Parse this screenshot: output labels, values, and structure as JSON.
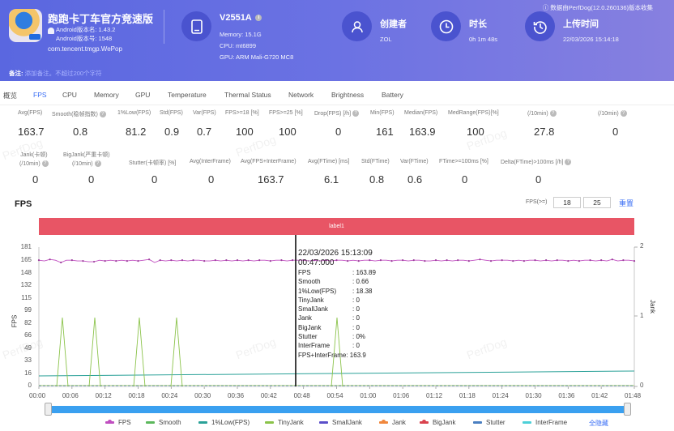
{
  "header": {
    "app": {
      "name": "跑跑卡丁车官方竞速版",
      "version_name": "Android版本名: 1.43.2",
      "version_code": "Android版本号: 1548",
      "package": "com.tencent.tmgp.WePop"
    },
    "device": {
      "model": "V2551A",
      "memory": "Memory: 15.1G",
      "cpu": "CPU: mt6899",
      "gpu": "GPU: ARM Mali-G720 MC8"
    },
    "creator": {
      "title": "创建者",
      "value": "ZOL"
    },
    "duration": {
      "title": "时长",
      "value": "0h 1m 48s"
    },
    "upload_time": {
      "title": "上传时间",
      "value": "22/03/2026 15:14:18"
    },
    "collect_note": "数据由PerfDog(12.0.260136)版本收集",
    "remark_label": "备注:",
    "remark_placeholder": "添加备注。不超过200个字符"
  },
  "tabs": [
    {
      "label": "概览",
      "active": false
    },
    {
      "label": "FPS",
      "active": true
    },
    {
      "label": "CPU",
      "active": false
    },
    {
      "label": "Memory",
      "active": false
    },
    {
      "label": "GPU",
      "active": false
    },
    {
      "label": "Temperature",
      "active": false
    },
    {
      "label": "Thermal Status",
      "active": false
    },
    {
      "label": "Network",
      "active": false
    },
    {
      "label": "Brightness",
      "active": false
    },
    {
      "label": "Battery",
      "active": false
    }
  ],
  "metrics_row1": [
    {
      "label": "Avg(FPS)",
      "value": "163.7",
      "help": false
    },
    {
      "label": "Smooth(稳帧指数)",
      "value": "0.8",
      "help": true
    },
    {
      "label": "1%Low(FPS)",
      "value": "81.2",
      "help": false
    },
    {
      "label": "Std(FPS)",
      "value": "0.9",
      "help": false
    },
    {
      "label": "Var(FPS)",
      "value": "0.7",
      "help": false
    },
    {
      "label": "FPS>=18 [%]",
      "value": "100",
      "help": false
    },
    {
      "label": "FPS>=25 [%]",
      "value": "100",
      "help": false
    },
    {
      "label": "Drop(FPS) [/h]",
      "value": "0",
      "help": true
    },
    {
      "label": "Min(FPS)",
      "value": "161",
      "help": false
    },
    {
      "label": "Median(FPS)",
      "value": "163.9",
      "help": false
    },
    {
      "label": "MedRange(FPS)[%]",
      "value": "100",
      "help": false
    },
    {
      "label": "(/10min)",
      "value": "27.8",
      "help": true
    },
    {
      "label": "(/10min)",
      "value": "0",
      "help": true
    }
  ],
  "metrics_row2": [
    {
      "label": "Jank(卡顿)",
      "label2": "(/10min)",
      "value": "0",
      "help": true
    },
    {
      "label": "BigJank(严重卡顿)",
      "label2": "(/10min)",
      "value": "0",
      "help": true
    },
    {
      "label": "Stutter(卡顿率) [%]",
      "value": "0",
      "help": false
    },
    {
      "label": "Avg(InterFrame)",
      "value": "0",
      "help": false
    },
    {
      "label": "Avg(FPS+InterFrame)",
      "value": "163.7",
      "help": false
    },
    {
      "label": "Avg(FTime) [ms]",
      "value": "6.1",
      "help": false
    },
    {
      "label": "Std(FTime)",
      "value": "0.8",
      "help": false
    },
    {
      "label": "Var(FTime)",
      "value": "0.6",
      "help": false
    },
    {
      "label": "FTime>=100ms [%]",
      "value": "0",
      "help": false
    },
    {
      "label": "Delta(FTime)>100ms [/h]",
      "value": "0",
      "help": true
    }
  ],
  "watermark": "PerfDog",
  "chart_section": {
    "title": "FPS",
    "threshold_label": "FPS(>=)",
    "threshold_1": "18",
    "threshold_2": "25",
    "reset_label": "重置",
    "label_bar": "label1",
    "hide_all_label": "全隐藏"
  },
  "tooltip": {
    "datetime": "22/03/2026 15:13:09",
    "elapsed": "00:47:000",
    "rows": [
      {
        "k": "FPS",
        "v": ": 163.89"
      },
      {
        "k": "Smooth",
        "v": ": 0.66"
      },
      {
        "k": "1%Low(FPS)",
        "v": ": 18.38"
      },
      {
        "k": "TinyJank",
        "v": ": 0"
      },
      {
        "k": "SmallJank",
        "v": ": 0"
      },
      {
        "k": "Jank",
        "v": ": 0"
      },
      {
        "k": "BigJank",
        "v": ": 0"
      },
      {
        "k": "Stutter",
        "v": ": 0%"
      },
      {
        "k": "InterFrame",
        "v": ": 0"
      },
      {
        "k": "FPS+InterFrame",
        "v": ": 163.9"
      }
    ]
  },
  "chart_data": {
    "type": "line",
    "title": "FPS",
    "xlabel": "",
    "ylabel": "FPS",
    "y2label": "Jank",
    "ylim": [
      0,
      181
    ],
    "y2lim": [
      0,
      2
    ],
    "yticks": [
      "181",
      "165",
      "148",
      "132",
      "115",
      "99",
      "82",
      "66",
      "49",
      "33",
      "16",
      "0"
    ],
    "y2ticks": [
      "2",
      "1",
      "0"
    ],
    "xticks": [
      "00:00",
      "00:06",
      "00:12",
      "00:18",
      "00:24",
      "00:30",
      "00:36",
      "00:42",
      "00:48",
      "00:54",
      "01:00",
      "01:06",
      "01:12",
      "01:18",
      "01:24",
      "01:30",
      "01:36",
      "01:42",
      "01:48"
    ],
    "grid": false,
    "legend_position": "bottom",
    "cursor_time": "00:47",
    "series": [
      {
        "name": "FPS",
        "color": "#c04fc0",
        "axis": "left",
        "marker": true,
        "values": [
          164,
          163,
          165,
          164,
          161,
          164,
          164,
          163,
          163,
          162,
          162,
          164,
          163,
          164,
          163,
          164,
          163,
          164,
          163,
          164,
          165,
          161,
          164,
          163,
          164,
          163,
          164,
          163,
          164,
          164,
          163,
          163,
          164,
          163,
          164,
          163,
          164,
          163,
          164,
          163,
          164,
          164,
          163,
          164,
          164,
          163,
          164,
          164,
          164,
          163,
          164,
          163,
          164,
          163,
          164,
          164,
          163,
          164,
          163,
          164,
          164,
          163,
          164,
          164,
          163,
          164,
          164,
          163,
          164,
          164,
          163,
          163,
          164,
          163,
          164,
          163,
          164,
          164,
          163,
          164,
          165,
          164,
          163,
          164,
          164,
          164,
          163,
          164,
          163,
          164,
          164,
          163,
          164,
          163,
          164,
          164,
          163,
          164,
          163,
          164,
          164,
          163,
          164,
          163,
          165,
          163,
          164,
          164,
          163
        ]
      },
      {
        "name": "Smooth",
        "color": "#5cb85c",
        "axis": "left",
        "values": []
      },
      {
        "name": "1%Low(FPS)",
        "color": "#2aa198",
        "axis": "left",
        "values_summary": "rises slowly from ~16 to ~18 across run"
      },
      {
        "name": "TinyJank",
        "color": "#8bc34a",
        "axis": "right",
        "spikes_at": [
          "00:03",
          "00:09",
          "00:17",
          "00:24",
          "00:54"
        ],
        "spike_value": 1
      },
      {
        "name": "SmallJank",
        "color": "#5b4fc9",
        "axis": "right",
        "values": []
      },
      {
        "name": "Jank",
        "color": "#f0883e",
        "axis": "right",
        "values": []
      },
      {
        "name": "BigJank",
        "color": "#d9434e",
        "axis": "right",
        "values": []
      },
      {
        "name": "Stutter",
        "color": "#4a7fc1",
        "axis": "right",
        "values": []
      },
      {
        "name": "InterFrame",
        "color": "#4dd0d8",
        "axis": "right",
        "values": []
      }
    ]
  },
  "legend": [
    {
      "name": "FPS",
      "color": "#c04fc0",
      "dot": true
    },
    {
      "name": "Smooth",
      "color": "#5cb85c",
      "dot": false
    },
    {
      "name": "1%Low(FPS)",
      "color": "#2aa198",
      "dot": false
    },
    {
      "name": "TinyJank",
      "color": "#8bc34a",
      "dot": false
    },
    {
      "name": "SmallJank",
      "color": "#5b4fc9",
      "dot": false
    },
    {
      "name": "Jank",
      "color": "#f0883e",
      "dot": true
    },
    {
      "name": "BigJank",
      "color": "#d9434e",
      "dot": true
    },
    {
      "name": "Stutter",
      "color": "#4a7fc1",
      "dot": false
    },
    {
      "name": "InterFrame",
      "color": "#4dd0d8",
      "dot": false
    }
  ]
}
